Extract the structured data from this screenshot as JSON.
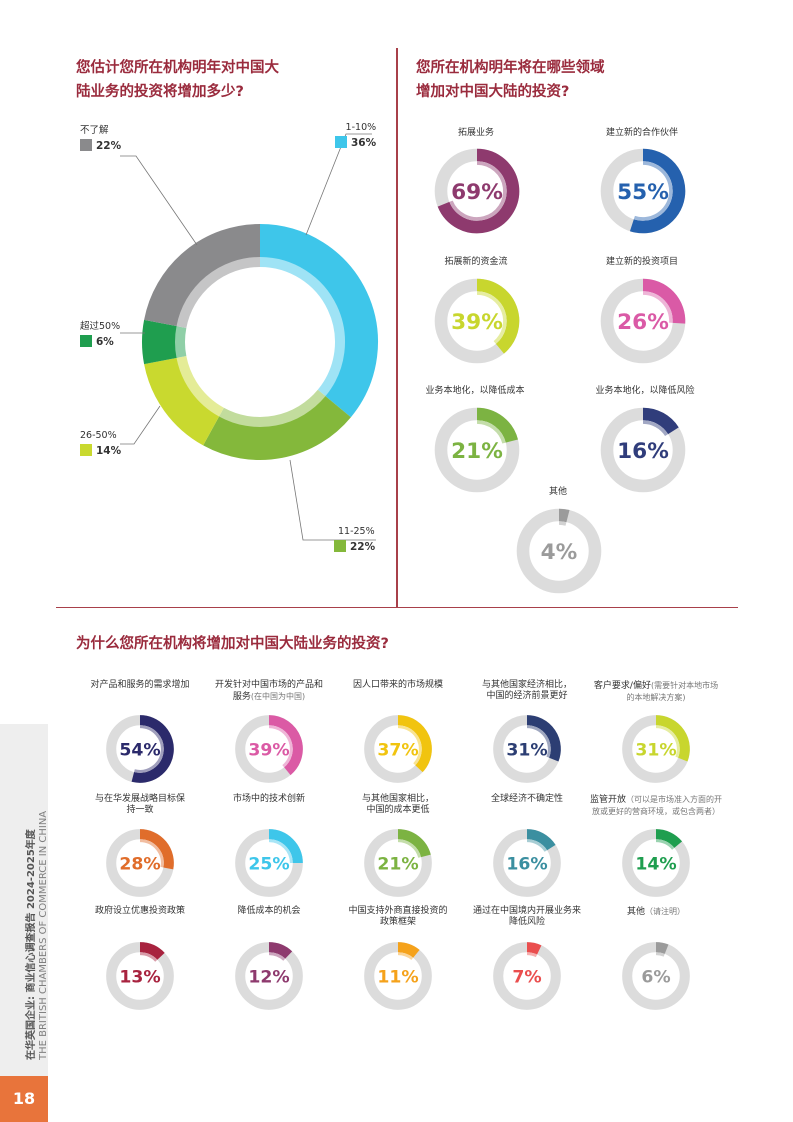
{
  "headings": {
    "q1": [
      "您估计您所在机构明年对中国大",
      "陆业务的投资将增加多少?"
    ],
    "q2": [
      "您所在机构明年将在哪些领域",
      "增加对中国大陆的投资?"
    ],
    "q3": "为什么您所在机构将增加对中国大陆业务的投资?"
  },
  "chart_data": [
    {
      "type": "pie",
      "categories": [
        "1-10%",
        "11-25%",
        "26-50%",
        "超过50%",
        "不了解"
      ],
      "values": [
        36,
        22,
        14,
        6,
        22
      ],
      "labels": [
        "36%",
        "22%",
        "14%",
        "6%",
        "22%"
      ],
      "colors": [
        "#3ec6ea",
        "#84b83b",
        "#c9d92f",
        "#1f9e4f",
        "#8a8a8c"
      ]
    },
    {
      "type": "pie",
      "categories": [
        "拓展业务",
        "建立新的合作伙伴",
        "拓展新的资金流",
        "建立新的投资项目",
        "业务本地化，以降低成本",
        "业务本地化，以降低风险",
        "其他"
      ],
      "values": [
        69,
        55,
        39,
        26,
        21,
        16,
        4
      ],
      "labels": [
        "69%",
        "55%",
        "39%",
        "26%",
        "21%",
        "16%",
        "4%"
      ],
      "colors": [
        "#8e3a6e",
        "#2561ae",
        "#c8d62e",
        "#da5aa6",
        "#7cb342",
        "#303d7b",
        "#9b9b9b"
      ]
    },
    {
      "type": "pie",
      "categories": [
        "对产品和服务的需求增加",
        "开发针对中国市场的产品和服务(在中国为中国)",
        "因人口带来的市场规模",
        "与其他国家经济相比，中国的经济前景更好",
        "客户要求/偏好(需要针对本地市场的本地解决方案)",
        "与在华发展战略目标保持一致",
        "市场中的技术创新",
        "与其他国家相比，中国的成本更低",
        "全球经济不确定性",
        "监管开放（可以是市场准入方面的开放或更好的营商环境，或包含两者）",
        "政府设立优惠投资政策",
        "降低成本的机会",
        "中国支持外商直接投资的政策框架",
        "通过在中国境内开展业务来降低风险",
        "其他（请注明）"
      ],
      "values": [
        54,
        39,
        37,
        31,
        31,
        28,
        25,
        21,
        16,
        14,
        13,
        12,
        11,
        7,
        6
      ],
      "labels": [
        "54%",
        "39%",
        "37%",
        "31%",
        "31%",
        "28%",
        "25%",
        "21%",
        "16%",
        "14%",
        "13%",
        "12%",
        "11%",
        "7%",
        "6%"
      ],
      "colors": [
        "#2b2a6b",
        "#db5aa5",
        "#f1c40f",
        "#2c3e73",
        "#c8d62e",
        "#e06d2b",
        "#3ec6ea",
        "#7cb342",
        "#3b8fa0",
        "#1f9e4f",
        "#a8233f",
        "#8e3a6e",
        "#f5a21b",
        "#ea4e4e",
        "#9b9b9b"
      ]
    }
  ],
  "q1_legend": {
    "unknown": {
      "cat": "不了解",
      "val": "22%"
    },
    "p1_10": {
      "cat": "1-10%",
      "val": "36%"
    },
    "over50": {
      "cat": "超过50%",
      "val": "6%"
    },
    "p26_50": {
      "cat": "26-50%",
      "val": "14%"
    },
    "p11_25": {
      "cat": "11-25%",
      "val": "22%"
    }
  },
  "q2_labels": [
    "拓展业务",
    "建立新的合作伙伴",
    "拓展新的资金流",
    "建立新的投资项目",
    "业务本地化，以降低成本",
    "业务本地化，以降低风险",
    "其他"
  ],
  "q3_labels": [
    {
      "l1": "对产品和服务的需求增加",
      "l2": "",
      "note": ""
    },
    {
      "l1": "开发针对中国市场的产品和",
      "l2": "服务",
      "note": "(在中国为中国)"
    },
    {
      "l1": "因人口带来的市场规模",
      "l2": "",
      "note": ""
    },
    {
      "l1": "与其他国家经济相比，",
      "l2": "中国的经济前景更好",
      "note": ""
    },
    {
      "l1": "客户要求/偏好",
      "l2": "",
      "note": "(需要针对本地市场的本地解决方案)"
    },
    {
      "l1": "与在华发展战略目标保",
      "l2": "持一致",
      "note": ""
    },
    {
      "l1": "市场中的技术创新",
      "l2": "",
      "note": ""
    },
    {
      "l1": "与其他国家相比，",
      "l2": "中国的成本更低",
      "note": ""
    },
    {
      "l1": "全球经济不确定性",
      "l2": "",
      "note": ""
    },
    {
      "l1": "监管开放",
      "l2": "",
      "note": "（可以是市场准入方面的开放或更好的营商环境，或包含两者）"
    },
    {
      "l1": "政府设立优惠投资政策",
      "l2": "",
      "note": ""
    },
    {
      "l1": "降低成本的机会",
      "l2": "",
      "note": ""
    },
    {
      "l1": "中国支持外商直接投资的",
      "l2": "政策框架",
      "note": ""
    },
    {
      "l1": "通过在中国境内开展业务来",
      "l2": "降低风险",
      "note": ""
    },
    {
      "l1": "其他",
      "l2": "",
      "note": "（请注明）"
    }
  ],
  "sidebar": {
    "title_cn": "在华英国企业: 商业信心调查报告 2024-2025年度",
    "title_en": "THE BRITISH CHAMBERS OF COMMERCE IN CHINA",
    "page_number": "18"
  }
}
